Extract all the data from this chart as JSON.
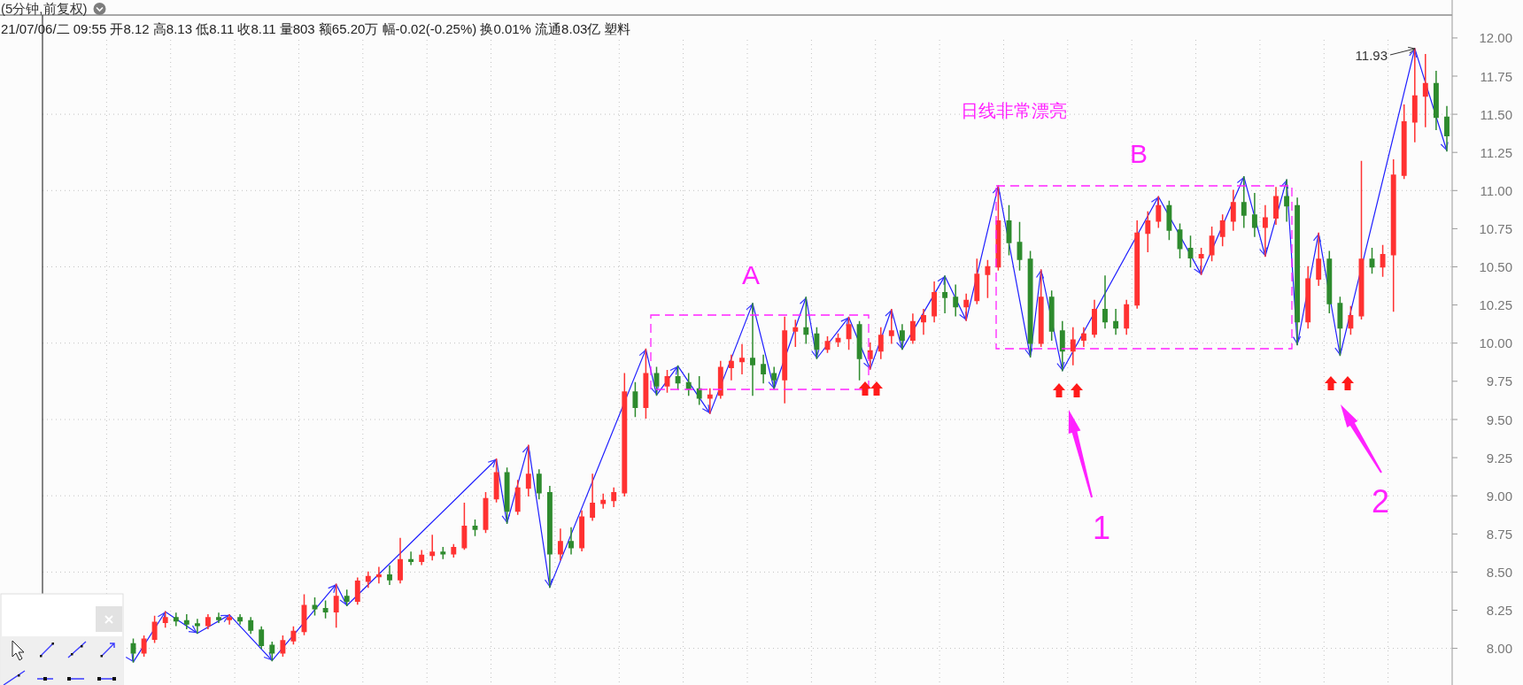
{
  "chart_data": {
    "type": "candlestick",
    "title": "(5分钟,前复权)",
    "subtitle": "21/07/06/二 09:55 开8.12 高8.13 低8.11 收8.11 量803 额65.20万 幅-0.02(-0.25%) 换0.01% 流通8.03亿 塑料",
    "categories": [
      null,
      null,
      null,
      null,
      null,
      null,
      null,
      null,
      null,
      null,
      null,
      null,
      null,
      null,
      null,
      null,
      null,
      null,
      null,
      null,
      null,
      null,
      null,
      null,
      null,
      null,
      null,
      null,
      null,
      null,
      null,
      null,
      null,
      null,
      null,
      null,
      null,
      null,
      null,
      null,
      null,
      null,
      null,
      null,
      null,
      null,
      null,
      null,
      null,
      null,
      null,
      null,
      null,
      null,
      null,
      null,
      null,
      null,
      null,
      null,
      null,
      null,
      null,
      null,
      null,
      null,
      null,
      null,
      null,
      null,
      null,
      null,
      null,
      null,
      null,
      null,
      null,
      null,
      null,
      null,
      null,
      null,
      null,
      null,
      null,
      null,
      null,
      null,
      null,
      null,
      null,
      null,
      null,
      null,
      null,
      null,
      null,
      null,
      null,
      null,
      null,
      null,
      null,
      null,
      null,
      null,
      null,
      null,
      null,
      null,
      null,
      null,
      null,
      null,
      null,
      null,
      null,
      null,
      null,
      null,
      null,
      null,
      null,
      null,
      null,
      null,
      null,
      null,
      null,
      null,
      null,
      null
    ],
    "series": [
      {
        "type": "line",
        "color": "#1e1eff",
        "values": [
          null,
          null,
          null,
          null,
          null,
          null,
          null,
          null,
          7.91,
          null,
          null,
          8.24,
          null,
          null,
          8.1,
          null,
          null,
          8.22,
          null,
          null,
          null,
          7.92,
          null,
          null,
          null,
          null,
          null,
          8.42,
          8.28,
          null,
          null,
          null,
          null,
          null,
          null,
          null,
          null,
          null,
          null,
          null,
          null,
          null,
          9.24,
          8.82,
          null,
          9.33,
          null,
          8.4,
          null,
          null,
          null,
          null,
          null,
          null,
          null,
          null,
          9.96,
          9.66,
          null,
          9.85,
          null,
          null,
          9.54,
          null,
          null,
          null,
          10.26,
          null,
          9.7,
          null,
          null,
          10.3,
          9.9,
          null,
          null,
          10.17,
          null,
          9.83,
          null,
          10.22,
          9.96,
          null,
          null,
          null,
          10.44,
          null,
          10.15,
          null,
          null,
          11.03,
          null,
          null,
          9.91,
          10.48,
          null,
          9.82,
          null,
          null,
          null,
          null,
          null,
          null,
          null,
          null,
          10.96,
          null,
          null,
          null,
          10.45,
          null,
          null,
          null,
          11.09,
          null,
          10.57,
          null,
          11.07,
          9.99,
          null,
          10.72,
          null,
          9.92,
          null,
          null,
          null,
          null,
          null,
          null,
          11.93,
          null,
          null,
          11.26
        ]
      },
      {
        "ohlc": [
          null,
          null,
          null,
          null,
          null,
          null,
          null,
          null,
          [
            8.03,
            8.06,
            7.91,
            7.97
          ],
          [
            7.97,
            8.08,
            7.95,
            8.06
          ],
          [
            8.06,
            8.21,
            8.04,
            8.17
          ],
          [
            8.17,
            8.24,
            8.14,
            8.2
          ],
          [
            8.2,
            8.23,
            8.15,
            8.18
          ],
          [
            8.18,
            8.22,
            8.13,
            8.16
          ],
          [
            8.16,
            8.19,
            8.1,
            8.15
          ],
          [
            8.15,
            8.22,
            8.13,
            8.2
          ],
          [
            8.2,
            8.23,
            8.17,
            8.19
          ],
          [
            8.19,
            8.22,
            8.16,
            8.2
          ],
          [
            8.2,
            8.22,
            8.16,
            8.18
          ],
          [
            8.18,
            8.2,
            8.1,
            8.12
          ],
          [
            8.12,
            8.14,
            8.0,
            8.02
          ],
          [
            8.02,
            8.04,
            7.92,
            7.97
          ],
          [
            7.97,
            8.08,
            7.95,
            8.05
          ],
          [
            8.05,
            8.14,
            8.03,
            8.11
          ],
          [
            8.11,
            8.35,
            8.09,
            8.28
          ],
          [
            8.28,
            8.33,
            8.22,
            8.26
          ],
          [
            8.26,
            8.31,
            8.2,
            8.24
          ],
          [
            8.24,
            8.42,
            8.14,
            8.34
          ],
          [
            8.34,
            8.38,
            8.28,
            8.31
          ],
          [
            8.31,
            8.46,
            8.29,
            8.44
          ],
          [
            8.44,
            8.5,
            8.4,
            8.47
          ],
          [
            8.47,
            8.53,
            8.43,
            8.48
          ],
          [
            8.48,
            8.54,
            8.42,
            8.45
          ],
          [
            8.45,
            8.72,
            8.43,
            8.58
          ],
          [
            8.58,
            8.63,
            8.55,
            8.57
          ],
          [
            8.57,
            8.64,
            8.55,
            8.61
          ],
          [
            8.61,
            8.74,
            8.58,
            8.63
          ],
          [
            8.63,
            8.66,
            8.59,
            8.62
          ],
          [
            8.62,
            8.68,
            8.6,
            8.66
          ],
          [
            8.66,
            8.95,
            8.65,
            8.8
          ],
          [
            8.8,
            8.84,
            8.74,
            8.78
          ],
          [
            8.78,
            9.02,
            8.76,
            8.98
          ],
          [
            8.98,
            9.24,
            8.96,
            9.15
          ],
          [
            9.15,
            9.18,
            8.82,
            8.9
          ],
          [
            8.9,
            9.1,
            8.88,
            9.05
          ],
          [
            9.05,
            9.33,
            9.0,
            9.14
          ],
          [
            9.14,
            9.17,
            8.98,
            9.02
          ],
          [
            9.02,
            9.06,
            8.4,
            8.62
          ],
          [
            8.62,
            8.78,
            8.58,
            8.7
          ],
          [
            8.7,
            8.79,
            8.62,
            8.66
          ],
          [
            8.66,
            8.9,
            8.64,
            8.86
          ],
          [
            8.86,
            9.14,
            8.84,
            8.95
          ],
          [
            8.95,
            9.01,
            8.92,
            8.97
          ],
          [
            8.97,
            9.05,
            8.93,
            9.02
          ],
          [
            9.02,
            9.8,
            9.0,
            9.68
          ],
          [
            9.68,
            9.74,
            9.52,
            9.58
          ],
          [
            9.58,
            9.96,
            9.51,
            9.8
          ],
          [
            9.8,
            9.84,
            9.66,
            9.72
          ],
          [
            9.72,
            9.82,
            9.68,
            9.78
          ],
          [
            9.78,
            9.85,
            9.7,
            9.74
          ],
          [
            9.74,
            9.8,
            9.66,
            9.7
          ],
          [
            9.7,
            9.78,
            9.6,
            9.64
          ],
          [
            9.64,
            9.7,
            9.54,
            9.66
          ],
          [
            9.66,
            9.88,
            9.64,
            9.84
          ],
          [
            9.84,
            9.92,
            9.76,
            9.88
          ],
          [
            9.88,
            9.99,
            9.8,
            9.9
          ],
          [
            9.9,
            10.26,
            9.66,
            9.86
          ],
          [
            9.86,
            9.92,
            9.74,
            9.8
          ],
          [
            9.8,
            9.84,
            9.7,
            9.76
          ],
          [
            9.76,
            10.17,
            9.61,
            10.08
          ],
          [
            10.08,
            10.15,
            9.98,
            10.1
          ],
          [
            10.1,
            10.3,
            10.0,
            10.06
          ],
          [
            10.06,
            10.1,
            9.9,
            9.96
          ],
          [
            9.96,
            10.04,
            9.94,
            10.01
          ],
          [
            10.01,
            10.06,
            9.98,
            10.03
          ],
          [
            10.03,
            10.17,
            9.96,
            10.12
          ],
          [
            10.12,
            10.14,
            9.76,
            9.9
          ],
          [
            9.9,
            10.0,
            9.83,
            9.95
          ],
          [
            9.95,
            10.1,
            9.9,
            10.05
          ],
          [
            10.05,
            10.22,
            10.0,
            10.08
          ],
          [
            10.08,
            10.12,
            9.96,
            10.02
          ],
          [
            10.02,
            10.19,
            10.0,
            10.14
          ],
          [
            10.14,
            10.22,
            10.06,
            10.18
          ],
          [
            10.18,
            10.4,
            10.14,
            10.33
          ],
          [
            10.33,
            10.44,
            10.2,
            10.3
          ],
          [
            10.3,
            10.38,
            10.18,
            10.24
          ],
          [
            10.24,
            10.32,
            10.15,
            10.28
          ],
          [
            10.28,
            10.55,
            10.26,
            10.45
          ],
          [
            10.45,
            10.54,
            10.3,
            10.5
          ],
          [
            10.5,
            11.03,
            10.48,
            10.8
          ],
          [
            10.8,
            10.9,
            10.58,
            10.66
          ],
          [
            10.66,
            10.79,
            10.48,
            10.55
          ],
          [
            10.55,
            10.6,
            9.91,
            10.0
          ],
          [
            10.0,
            10.48,
            9.98,
            10.3
          ],
          [
            10.3,
            10.34,
            10.02,
            10.08
          ],
          [
            10.08,
            10.14,
            9.82,
            9.95
          ],
          [
            9.95,
            10.1,
            9.86,
            10.02
          ],
          [
            10.02,
            10.1,
            9.98,
            10.06
          ],
          [
            10.06,
            10.28,
            10.04,
            10.22
          ],
          [
            10.22,
            10.44,
            10.1,
            10.14
          ],
          [
            10.14,
            10.22,
            10.06,
            10.1
          ],
          [
            10.1,
            10.28,
            10.06,
            10.25
          ],
          [
            10.25,
            10.8,
            10.23,
            10.72
          ],
          [
            10.72,
            10.86,
            10.6,
            10.8
          ],
          [
            10.8,
            10.96,
            10.76,
            10.9
          ],
          [
            10.9,
            10.93,
            10.68,
            10.74
          ],
          [
            10.74,
            10.78,
            10.56,
            10.62
          ],
          [
            10.62,
            10.7,
            10.5,
            10.56
          ],
          [
            10.56,
            10.62,
            10.45,
            10.58
          ],
          [
            10.58,
            10.76,
            10.54,
            10.7
          ],
          [
            10.7,
            10.84,
            10.64,
            10.8
          ],
          [
            10.8,
            11.0,
            10.74,
            10.92
          ],
          [
            10.92,
            11.09,
            10.76,
            10.84
          ],
          [
            10.84,
            10.98,
            10.7,
            10.76
          ],
          [
            10.76,
            10.9,
            10.57,
            10.82
          ],
          [
            10.82,
            11.02,
            10.78,
            10.96
          ],
          [
            10.96,
            11.07,
            10.8,
            10.9
          ],
          [
            10.9,
            10.95,
            9.99,
            10.14
          ],
          [
            10.14,
            10.5,
            10.1,
            10.42
          ],
          [
            10.42,
            10.72,
            10.38,
            10.55
          ],
          [
            10.55,
            10.6,
            10.2,
            10.26
          ],
          [
            10.26,
            10.3,
            9.92,
            10.1
          ],
          [
            10.1,
            10.24,
            10.06,
            10.18
          ],
          [
            10.18,
            11.19,
            10.16,
            10.55
          ],
          [
            10.55,
            10.62,
            10.46,
            10.5
          ],
          [
            10.5,
            10.64,
            10.44,
            10.58
          ],
          [
            10.58,
            11.2,
            10.21,
            11.1
          ],
          [
            11.1,
            11.56,
            11.08,
            11.45
          ],
          [
            11.45,
            11.93,
            11.32,
            11.62
          ],
          [
            11.62,
            11.89,
            11.42,
            11.7
          ],
          [
            11.7,
            11.78,
            11.4,
            11.48
          ],
          [
            11.48,
            11.55,
            11.26,
            11.36
          ]
        ],
        "colors": [
          null,
          null,
          null,
          null,
          null,
          null,
          null,
          null,
          "#2e8b2e",
          "#ff3232",
          "#ff3232",
          "#ff3232",
          "#2e8b2e",
          "#2e8b2e",
          "#2e8b2e",
          "#ff3232",
          "#2e8b2e",
          "#ff3232",
          "#2e8b2e",
          "#2e8b2e",
          "#2e8b2e",
          "#2e8b2e",
          "#ff3232",
          "#ff3232",
          "#ff3232",
          "#2e8b2e",
          "#2e8b2e",
          "#ff3232",
          "#2e8b2e",
          "#ff3232",
          "#ff3232",
          "#ff3232",
          "#2e8b2e",
          "#ff3232",
          "#2e8b2e",
          "#ff3232",
          "#ff3232",
          "#2e8b2e",
          "#ff3232",
          "#ff3232",
          "#2e8b2e",
          "#ff3232",
          "#ff3232",
          "#2e8b2e",
          "#ff3232",
          "#ff3232",
          "#2e8b2e",
          "#2e8b2e",
          "#ff3232",
          "#2e8b2e",
          "#ff3232",
          "#ff3232",
          "#ff3232",
          "#ff3232",
          "#ff3232",
          "#2e8b2e",
          "#ff3232",
          "#2e8b2e",
          "#ff3232",
          "#2e8b2e",
          "#2e8b2e",
          "#2e8b2e",
          "#ff3232",
          "#ff3232",
          "#ff3232",
          "#ff3232",
          "#2e8b2e",
          "#2e8b2e",
          "#2e8b2e",
          "#ff3232",
          "#ff3232",
          "#2e8b2e",
          "#2e8b2e",
          "#ff3232",
          "#ff3232",
          "#ff3232",
          "#2e8b2e",
          "#ff3232",
          "#ff3232",
          "#ff3232",
          "#2e8b2e",
          "#ff3232",
          "#ff3232",
          "#ff3232",
          "#2e8b2e",
          "#2e8b2e",
          "#ff3232",
          "#ff3232",
          "#ff3232",
          "#ff3232",
          "#2e8b2e",
          "#2e8b2e",
          "#2e8b2e",
          "#ff3232",
          "#2e8b2e",
          "#2e8b2e",
          "#ff3232",
          "#ff3232",
          "#ff3232",
          "#2e8b2e",
          "#2e8b2e",
          "#ff3232",
          "#ff3232",
          "#ff3232",
          "#ff3232",
          "#2e8b2e",
          "#2e8b2e",
          "#2e8b2e",
          "#ff3232",
          "#ff3232",
          "#ff3232",
          "#ff3232",
          "#2e8b2e",
          "#2e8b2e",
          "#ff3232",
          "#ff3232",
          "#2e8b2e",
          "#2e8b2e",
          "#ff3232",
          "#ff3232",
          "#2e8b2e",
          "#2e8b2e",
          "#ff3232",
          "#ff3232",
          "#2e8b2e",
          "#ff3232",
          "#ff3232",
          "#ff3232",
          "#ff3232",
          "#ff3232",
          "#2e8b2e",
          "#2e8b2e"
        ]
      }
    ],
    "ylim": [
      7.76,
      12.15
    ],
    "yticks": [
      {
        "value": 8,
        "label": "8.00"
      },
      8.25,
      {
        "value": 8.5,
        "label": "8.50"
      },
      8.75,
      {
        "value": 9,
        "label": "9.00"
      },
      9.25,
      {
        "value": 9.5,
        "label": "9.50"
      },
      9.75,
      {
        "value": 10,
        "label": "10.00"
      },
      10.25,
      {
        "value": 10.5,
        "label": "10.50"
      },
      10.75,
      {
        "value": 11,
        "label": "11.00"
      },
      11.25,
      {
        "value": 11.5,
        "label": "11.50"
      },
      11.75,
      {
        "value": 12,
        "label": "12.00"
      }
    ],
    "grid": true,
    "tick_labels": "y",
    "annotations": [
      "日线非常漂亮",
      "A",
      "B",
      "1",
      "2",
      "11.93"
    ]
  }
}
